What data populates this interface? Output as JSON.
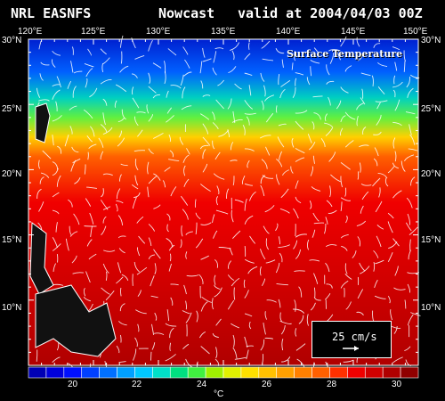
{
  "header": {
    "source": "NRL EASNFS",
    "product": "Nowcast",
    "valid": "valid at 2004/04/03 00Z"
  },
  "map": {
    "title": "Surface Temperature",
    "lon_labels": [
      "120°E",
      "125°E",
      "130°E",
      "135°E",
      "140°E",
      "145°E",
      "150°E"
    ],
    "lat_labels_left": [
      "30°N",
      "25°N",
      "20°N",
      "15°N",
      "10°N"
    ],
    "lat_labels_right": [
      "30°N",
      "25°N",
      "20°N",
      "15°N",
      "10°N"
    ],
    "lon_range": [
      120,
      150
    ],
    "lat_range": [
      5,
      30
    ]
  },
  "scale": {
    "label": "25 cm/s"
  },
  "colorbar": {
    "labels": [
      "20",
      "22",
      "24",
      "26",
      "28",
      "30"
    ],
    "unit": "°C",
    "colors": [
      "#0000b4",
      "#0000dc",
      "#0010ff",
      "#0040ff",
      "#0070ff",
      "#00a0ff",
      "#00c8ff",
      "#00e0c8",
      "#00e080",
      "#40f040",
      "#a0f000",
      "#e0f000",
      "#ffe000",
      "#ffc000",
      "#ffa000",
      "#ff8000",
      "#ff6000",
      "#ff3000",
      "#f00000",
      "#d00000",
      "#b00000",
      "#900000"
    ]
  }
}
